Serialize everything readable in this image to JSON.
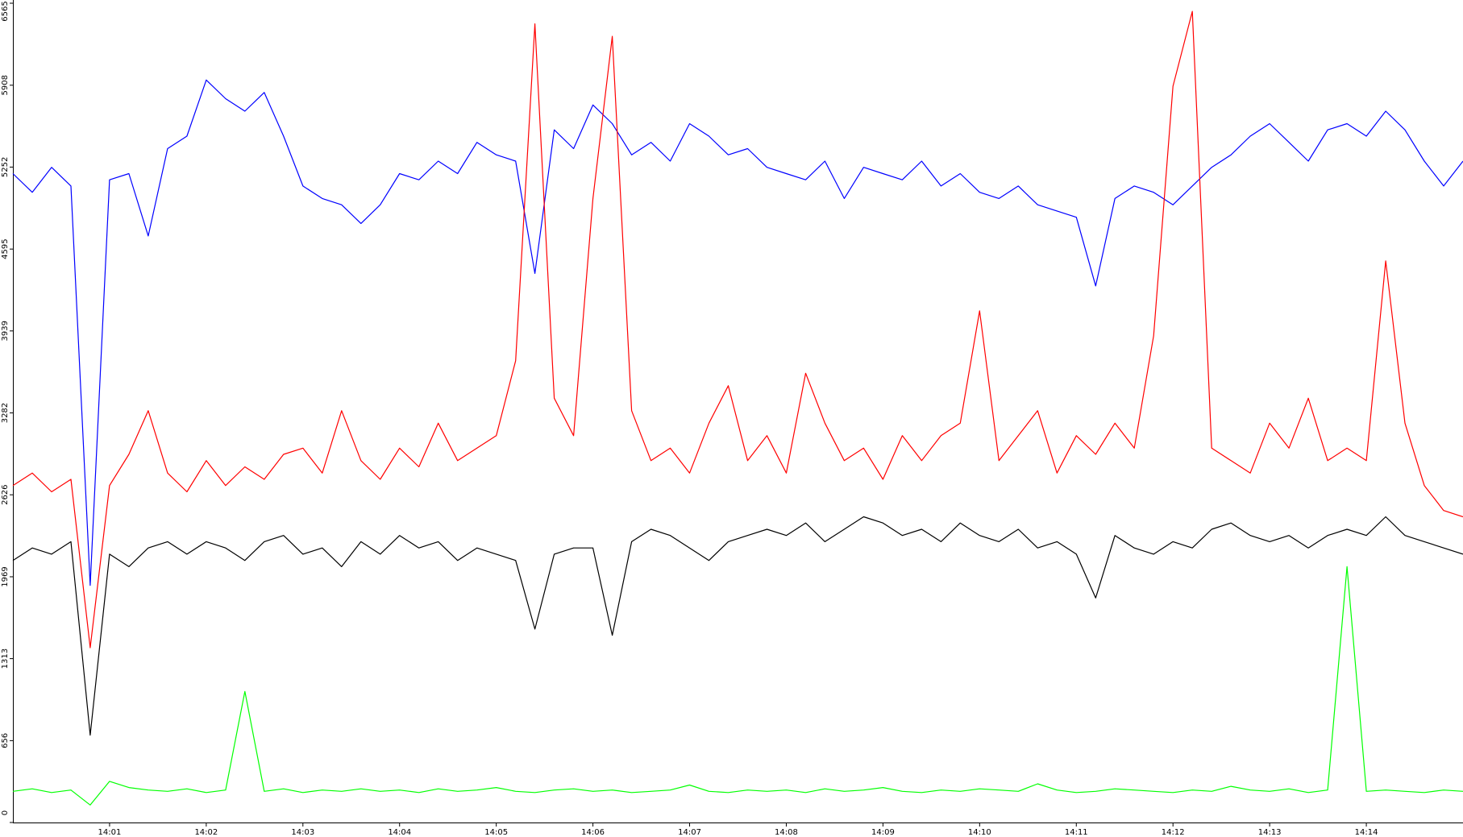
{
  "chart_data": {
    "type": "line",
    "xlim": [
      0,
      15
    ],
    "xticks": [
      {
        "value": 1,
        "label": "14:01"
      },
      {
        "value": 2,
        "label": "14:02"
      },
      {
        "value": 3,
        "label": "14:03"
      },
      {
        "value": 4,
        "label": "14:04"
      },
      {
        "value": 5,
        "label": "14:05"
      },
      {
        "value": 6,
        "label": "14:06"
      },
      {
        "value": 7,
        "label": "14:07"
      },
      {
        "value": 8,
        "label": "14:08"
      },
      {
        "value": 9,
        "label": "14:09"
      },
      {
        "value": 10,
        "label": "14:10"
      },
      {
        "value": 11,
        "label": "14:11"
      },
      {
        "value": 12,
        "label": "14:12"
      },
      {
        "value": 13,
        "label": "14:13"
      },
      {
        "value": 14,
        "label": "14:14"
      }
    ],
    "ylim": [
      0,
      6565
    ],
    "yticks": [
      0,
      656,
      1313,
      1969,
      2626,
      3282,
      3939,
      4595,
      5252,
      5908,
      6565
    ],
    "grid": false,
    "x": [
      0,
      0.2,
      0.4,
      0.6,
      0.8,
      1.0,
      1.2,
      1.4,
      1.6,
      1.8,
      2.0,
      2.2,
      2.4,
      2.6,
      2.8,
      3.0,
      3.2,
      3.4,
      3.6,
      3.8,
      4.0,
      4.2,
      4.4,
      4.6,
      4.8,
      5.0,
      5.2,
      5.4,
      5.6,
      5.8,
      6.0,
      6.2,
      6.4,
      6.6,
      6.8,
      7.0,
      7.2,
      7.4,
      7.6,
      7.8,
      8.0,
      8.2,
      8.4,
      8.6,
      8.8,
      9.0,
      9.2,
      9.4,
      9.6,
      9.8,
      10.0,
      10.2,
      10.4,
      10.6,
      10.8,
      11.0,
      11.2,
      11.4,
      11.6,
      11.8,
      12.0,
      12.2,
      12.4,
      12.6,
      12.8,
      13.0,
      13.2,
      13.4,
      13.6,
      13.8,
      14.0,
      14.2,
      14.4,
      14.6,
      14.8,
      15.0
    ],
    "series": [
      {
        "color": "#0000ff",
        "values": [
          5200,
          5050,
          5250,
          5100,
          1900,
          5150,
          5200,
          4700,
          5400,
          5500,
          5950,
          5800,
          5700,
          5850,
          5500,
          5100,
          5000,
          4950,
          4800,
          4950,
          5200,
          5150,
          5300,
          5200,
          5450,
          5350,
          5300,
          4400,
          5550,
          5400,
          5750,
          5600,
          5350,
          5450,
          5300,
          5600,
          5500,
          5350,
          5400,
          5250,
          5200,
          5150,
          5300,
          5000,
          5250,
          5200,
          5150,
          5300,
          5100,
          5200,
          5050,
          5000,
          5100,
          4950,
          4900,
          4850,
          4300,
          5000,
          5100,
          5050,
          4950,
          5100,
          5250,
          5350,
          5500,
          5600,
          5450,
          5300,
          5550,
          5600,
          5500,
          5700,
          5550,
          5300,
          5100,
          5300
        ]
      },
      {
        "color": "#ff0000",
        "values": [
          2700,
          2800,
          2650,
          2750,
          1400,
          2700,
          2950,
          3300,
          2800,
          2650,
          2900,
          2700,
          2850,
          2750,
          2950,
          3000,
          2800,
          3300,
          2900,
          2750,
          3000,
          2850,
          3200,
          2900,
          3000,
          3100,
          3700,
          6400,
          3400,
          3100,
          5000,
          6300,
          3300,
          2900,
          3000,
          2800,
          3200,
          3500,
          2900,
          3100,
          2800,
          3600,
          3200,
          2900,
          3000,
          2750,
          3100,
          2900,
          3100,
          3200,
          4100,
          2900,
          3100,
          3300,
          2800,
          3100,
          2950,
          3200,
          3000,
          3900,
          5900,
          6500,
          3000,
          2900,
          2800,
          3200,
          3000,
          3400,
          2900,
          3000,
          2900,
          4500,
          3200,
          2700,
          2500,
          2450
        ]
      },
      {
        "color": "#000000",
        "values": [
          2100,
          2200,
          2150,
          2250,
          700,
          2150,
          2050,
          2200,
          2250,
          2150,
          2250,
          2200,
          2100,
          2250,
          2300,
          2150,
          2200,
          2050,
          2250,
          2150,
          2300,
          2200,
          2250,
          2100,
          2200,
          2150,
          2100,
          1550,
          2150,
          2200,
          2200,
          1500,
          2250,
          2350,
          2300,
          2200,
          2100,
          2250,
          2300,
          2350,
          2300,
          2400,
          2250,
          2350,
          2450,
          2400,
          2300,
          2350,
          2250,
          2400,
          2300,
          2250,
          2350,
          2200,
          2250,
          2150,
          1800,
          2300,
          2200,
          2150,
          2250,
          2200,
          2350,
          2400,
          2300,
          2250,
          2300,
          2200,
          2300,
          2350,
          2300,
          2450,
          2300,
          2250,
          2200,
          2150
        ]
      },
      {
        "color": "#00ff00",
        "values": [
          250,
          270,
          240,
          260,
          140,
          330,
          280,
          260,
          250,
          270,
          240,
          260,
          1050,
          250,
          270,
          240,
          260,
          250,
          270,
          250,
          260,
          240,
          270,
          250,
          260,
          280,
          250,
          240,
          260,
          270,
          250,
          260,
          240,
          250,
          260,
          300,
          250,
          240,
          260,
          250,
          260,
          240,
          270,
          250,
          260,
          280,
          250,
          240,
          260,
          250,
          270,
          260,
          250,
          310,
          260,
          240,
          250,
          270,
          260,
          250,
          240,
          260,
          250,
          290,
          260,
          250,
          270,
          240,
          260,
          2050,
          250,
          260,
          250,
          240,
          260,
          250
        ]
      }
    ]
  }
}
